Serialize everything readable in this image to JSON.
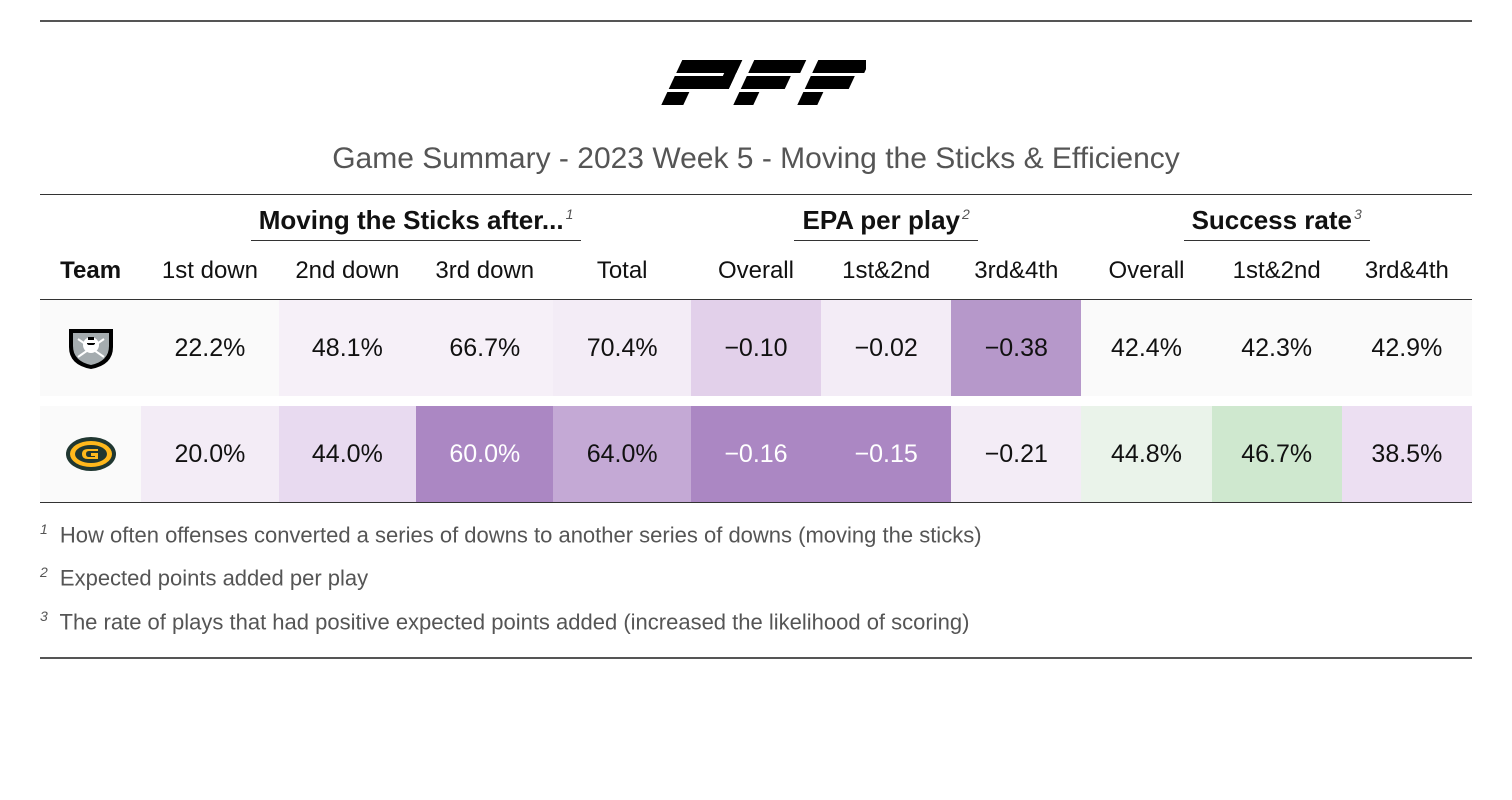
{
  "logo_text": "PFF",
  "title": "Game Summary - 2023 Week 5 - Moving the Sticks & Efficiency",
  "groups": [
    {
      "label": "Moving the Sticks after...",
      "sup": "1",
      "span": 4
    },
    {
      "label": "EPA per play",
      "sup": "2",
      "span": 3
    },
    {
      "label": "Success rate",
      "sup": "3",
      "span": 3
    }
  ],
  "columns": {
    "team": "Team",
    "mts": [
      "1st down",
      "2nd down",
      "3rd down",
      "Total"
    ],
    "epa": [
      "Overall",
      "1st&2nd",
      "3rd&4th"
    ],
    "sr": [
      "Overall",
      "1st&2nd",
      "3rd&4th"
    ]
  },
  "colors": {
    "neutral_bg": "#fafafa",
    "text": "#111111",
    "text_light_threshold": "none"
  },
  "rows": [
    {
      "team_name": "raiders",
      "logo": {
        "type": "shield",
        "bg": "#000000",
        "fg": "#ffffff"
      },
      "cells": [
        {
          "v": "22.2%",
          "bg": "#fafafa"
        },
        {
          "v": "48.1%",
          "bg": "#f6f0f8"
        },
        {
          "v": "66.7%",
          "bg": "#f6f0f8"
        },
        {
          "v": "70.4%",
          "bg": "#f3ecf6"
        },
        {
          "v": "−0.10",
          "bg": "#e2d0ea"
        },
        {
          "v": "−0.02",
          "bg": "#f3ecf6"
        },
        {
          "v": "−0.38",
          "bg": "#b698ca"
        },
        {
          "v": "42.4%",
          "bg": "#fafafa"
        },
        {
          "v": "42.3%",
          "bg": "#fafafa"
        },
        {
          "v": "42.9%",
          "bg": "#fafafa"
        }
      ]
    },
    {
      "team_name": "packers",
      "logo": {
        "type": "g-oval",
        "bg": "#203731",
        "fg": "#ffb81c"
      },
      "cells": [
        {
          "v": "20.0%",
          "bg": "#f3ecf6"
        },
        {
          "v": "44.0%",
          "bg": "#e8daf0"
        },
        {
          "v": "60.0%",
          "bg": "#ab87c3",
          "light": true
        },
        {
          "v": "64.0%",
          "bg": "#c4a9d5"
        },
        {
          "v": "−0.16",
          "bg": "#ab87c3",
          "light": true
        },
        {
          "v": "−0.15",
          "bg": "#ab87c3",
          "light": true
        },
        {
          "v": "−0.21",
          "bg": "#f3ecf6"
        },
        {
          "v": "44.8%",
          "bg": "#eaf3ea"
        },
        {
          "v": "46.7%",
          "bg": "#cfe8cf"
        },
        {
          "v": "38.5%",
          "bg": "#ecdff2"
        }
      ]
    }
  ],
  "footnotes": [
    {
      "n": "1",
      "text": "How often offenses converted a series of downs to another series of downs (moving the sticks)"
    },
    {
      "n": "2",
      "text": "Expected points added per play"
    },
    {
      "n": "3",
      "text": "The rate of plays that had positive expected points added (increased the likelihood of scoring)"
    }
  ]
}
